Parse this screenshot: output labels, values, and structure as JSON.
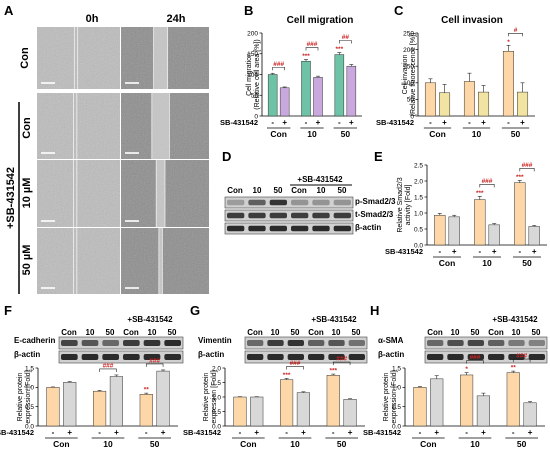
{
  "panel_letters": [
    "A",
    "B",
    "C",
    "D",
    "E",
    "F",
    "G",
    "H"
  ],
  "colors": {
    "orange": "#fdd7a7",
    "purple": "#c9a9dd",
    "green": "#6ec2a6",
    "yellow": "#f1e3a2",
    "gray": "#d8d8d8",
    "bar_stroke": "#333333",
    "sig_red": "#cc2222"
  },
  "panel_a": {
    "col_labels": [
      "0h",
      "24h"
    ],
    "con_row_label": "Con",
    "group_label": "+SB-431542",
    "sb_row_labels": [
      "Con",
      "10 µM",
      "50 µM"
    ]
  },
  "panel_d": {
    "col_labels": [
      "Con",
      "10",
      "50",
      "Con",
      "10",
      "50"
    ],
    "treat_label": "+SB-431542",
    "bands": [
      "p-Smad2/3",
      "t-Smad2/3",
      "β-actin"
    ]
  },
  "blots": [
    {
      "key": "F",
      "col_labels": [
        "Con",
        "10",
        "50",
        "Con",
        "10",
        "50"
      ],
      "treat_label": "+SB-431542",
      "bands": [
        "E-cadherin",
        "β-actin"
      ]
    },
    {
      "key": "G",
      "col_labels": [
        "Con",
        "10",
        "50",
        "Con",
        "10",
        "50"
      ],
      "treat_label": "+SB-431542",
      "bands": [
        "Vimentin",
        "β-actin"
      ]
    },
    {
      "key": "H",
      "col_labels": [
        "Con",
        "10",
        "50",
        "Con",
        "10",
        "50"
      ],
      "treat_label": "+SB-431542",
      "bands": [
        "α-SMA",
        "β-actin"
      ]
    }
  ],
  "chart_data": [
    {
      "key": "B",
      "type": "bar",
      "title": "Cell migration",
      "ylabel": "Cell migration\n(Relative cell area [%])",
      "ylim": [
        0,
        200
      ],
      "yticks": [
        0,
        50,
        100,
        150,
        200
      ],
      "groups": [
        "Con",
        "10",
        "50"
      ],
      "sb_label": "SB-431542",
      "sb_values": [
        "-",
        "+"
      ],
      "values": [
        [
          100,
          68
        ],
        [
          132,
          93
        ],
        [
          148,
          120
        ]
      ],
      "errors": [
        [
          3,
          2
        ],
        [
          4,
          3
        ],
        [
          5,
          4
        ]
      ],
      "colors": [
        "#6ec2a6",
        "#c9a9dd"
      ],
      "marks": [
        [
          "",
          ""
        ],
        [
          "***",
          ""
        ],
        [
          "***",
          ""
        ]
      ],
      "brackets": [
        "###",
        "###",
        "##"
      ]
    },
    {
      "key": "C",
      "type": "bar",
      "title": "Cell invasion",
      "ylabel": "Cell invasion\n(Relative fluorescence [%])",
      "ylim": [
        0,
        250
      ],
      "yticks": [
        0,
        50,
        100,
        150,
        200,
        250
      ],
      "groups": [
        "Con",
        "10",
        "50"
      ],
      "sb_label": "SB-431542",
      "sb_values": [
        "-",
        "+"
      ],
      "values": [
        [
          100,
          70
        ],
        [
          104,
          72
        ],
        [
          195,
          72
        ]
      ],
      "errors": [
        [
          12,
          25
        ],
        [
          25,
          20
        ],
        [
          18,
          28
        ]
      ],
      "colors": [
        "#fdd7a7",
        "#f1e3a2"
      ],
      "marks": [
        [
          "",
          ""
        ],
        [
          "",
          ""
        ],
        [
          "*",
          ""
        ]
      ],
      "brackets": [
        "",
        "",
        "#"
      ]
    },
    {
      "key": "E",
      "type": "bar",
      "ylabel": "Relative Smad2/3\nactivity [Fold]",
      "ylim": [
        0,
        2.5
      ],
      "yticks": [
        0.0,
        0.5,
        1.0,
        1.5,
        2.0,
        2.5
      ],
      "groups": [
        "Con",
        "10",
        "50"
      ],
      "sb_label": "SB-431542",
      "sb_values": [
        "-",
        "+"
      ],
      "values": [
        [
          0.93,
          0.88
        ],
        [
          1.42,
          0.63
        ],
        [
          1.95,
          0.58
        ]
      ],
      "errors": [
        [
          0.06,
          0.05
        ],
        [
          0.1,
          0.04
        ],
        [
          0.07,
          0.03
        ]
      ],
      "colors": [
        "#fdd7a7",
        "#d8d8d8"
      ],
      "marks": [
        [
          "",
          ""
        ],
        [
          "***",
          ""
        ],
        [
          "***",
          ""
        ]
      ],
      "brackets": [
        "",
        "###",
        "###"
      ]
    },
    {
      "key": "F",
      "type": "bar",
      "ylabel": "Relative protein\nexpression [Fold]",
      "ylim": [
        0,
        1.5
      ],
      "yticks": [
        0.0,
        0.5,
        1.0,
        1.5
      ],
      "groups": [
        "Con",
        "10",
        "50"
      ],
      "sb_label": "SB-431542",
      "sb_values": [
        "-",
        "+"
      ],
      "values": [
        [
          1.0,
          1.13
        ],
        [
          0.9,
          1.28
        ],
        [
          0.82,
          1.42
        ]
      ],
      "errors": [
        [
          0.01,
          0.02
        ],
        [
          0.02,
          0.04
        ],
        [
          0.03,
          0.03
        ]
      ],
      "colors": [
        "#fdd7a7",
        "#d8d8d8"
      ],
      "marks": [
        [
          "",
          ""
        ],
        [
          "",
          ""
        ],
        [
          "**",
          ""
        ]
      ],
      "brackets": [
        "",
        "###",
        "###"
      ]
    },
    {
      "key": "G",
      "type": "bar",
      "ylabel": "Relative protein\nexpression [Fold]",
      "ylim": [
        0,
        2.0
      ],
      "yticks": [
        0.0,
        0.5,
        1.0,
        1.5,
        2.0
      ],
      "groups": [
        "Con",
        "10",
        "50"
      ],
      "sb_label": "SB-431542",
      "sb_values": [
        "-",
        "+"
      ],
      "values": [
        [
          1.0,
          1.0
        ],
        [
          1.6,
          1.15
        ],
        [
          1.75,
          0.92
        ]
      ],
      "errors": [
        [
          0.01,
          0.01
        ],
        [
          0.04,
          0.03
        ],
        [
          0.04,
          0.02
        ]
      ],
      "colors": [
        "#fdd7a7",
        "#d8d8d8"
      ],
      "marks": [
        [
          "",
          ""
        ],
        [
          "***",
          ""
        ],
        [
          "***",
          ""
        ]
      ],
      "brackets": [
        "",
        "###",
        "###"
      ]
    },
    {
      "key": "H",
      "type": "bar",
      "ylabel": "Relative protein\nexpression [Fold]",
      "ylim": [
        0,
        1.5
      ],
      "yticks": [
        0.0,
        0.5,
        1.0,
        1.5
      ],
      "groups": [
        "Con",
        "10",
        "50"
      ],
      "sb_label": "SB-431542",
      "sb_values": [
        "-",
        "+"
      ],
      "values": [
        [
          1.0,
          1.22
        ],
        [
          1.32,
          0.78
        ],
        [
          1.38,
          0.6
        ]
      ],
      "errors": [
        [
          0.02,
          0.08
        ],
        [
          0.06,
          0.07
        ],
        [
          0.04,
          0.03
        ]
      ],
      "colors": [
        "#fdd7a7",
        "#d8d8d8"
      ],
      "marks": [
        [
          "",
          ""
        ],
        [
          "*",
          ""
        ],
        [
          "**",
          ""
        ]
      ],
      "brackets": [
        "",
        "###",
        "###"
      ]
    }
  ]
}
